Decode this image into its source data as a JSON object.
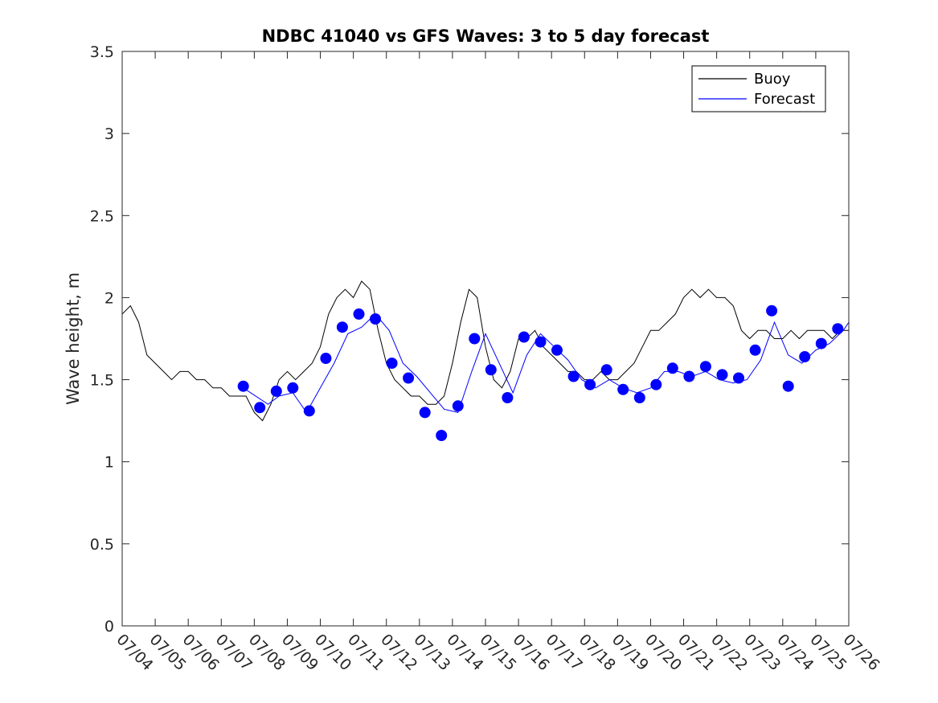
{
  "chart_data": {
    "type": "line",
    "title": "NDBC 41040 vs GFS Waves: 3 to 5 day forecast",
    "xlabel": "",
    "ylabel": "Wave height, m",
    "ylim": [
      0,
      3.5
    ],
    "yticks": [
      "0",
      "0.5",
      "1",
      "1.5",
      "2",
      "2.5",
      "3",
      "3.5"
    ],
    "xlim": [
      "07/04",
      "07/26"
    ],
    "xticks": [
      "07/04",
      "07/05",
      "07/06",
      "07/07",
      "07/08",
      "07/09",
      "07/10",
      "07/11",
      "07/12",
      "07/13",
      "07/14",
      "07/15",
      "07/16",
      "07/17",
      "07/18",
      "07/19",
      "07/20",
      "07/21",
      "07/22",
      "07/23",
      "07/24",
      "07/25",
      "07/26"
    ],
    "grid": false,
    "legend": {
      "position": "top-right",
      "entries": [
        "Buoy",
        "Forecast"
      ]
    },
    "colors": {
      "buoy": "#000000",
      "forecast": "#0000ff",
      "markers": "#0000ff"
    },
    "series": [
      {
        "name": "Buoy",
        "x": [
          "07/04 00:00",
          "07/04 06:00",
          "07/04 12:00",
          "07/04 18:00",
          "07/05 00:00",
          "07/05 06:00",
          "07/05 12:00",
          "07/05 18:00",
          "07/06 00:00",
          "07/06 06:00",
          "07/06 12:00",
          "07/06 18:00",
          "07/07 00:00",
          "07/07 06:00",
          "07/07 12:00",
          "07/07 18:00",
          "07/08 00:00",
          "07/08 06:00",
          "07/08 12:00",
          "07/08 18:00",
          "07/09 00:00",
          "07/09 06:00",
          "07/09 12:00",
          "07/09 18:00",
          "07/10 00:00",
          "07/10 06:00",
          "07/10 12:00",
          "07/10 18:00",
          "07/11 00:00",
          "07/11 06:00",
          "07/11 12:00",
          "07/11 18:00",
          "07/12 00:00",
          "07/12 06:00",
          "07/12 12:00",
          "07/12 18:00",
          "07/13 00:00",
          "07/13 06:00",
          "07/13 12:00",
          "07/13 18:00",
          "07/14 00:00",
          "07/14 06:00",
          "07/14 12:00",
          "07/14 18:00",
          "07/15 00:00",
          "07/15 06:00",
          "07/15 12:00",
          "07/15 18:00",
          "07/16 00:00",
          "07/16 06:00",
          "07/16 12:00",
          "07/16 18:00",
          "07/17 00:00",
          "07/17 06:00",
          "07/17 12:00",
          "07/17 18:00",
          "07/18 00:00",
          "07/18 06:00",
          "07/18 12:00",
          "07/18 18:00",
          "07/19 00:00",
          "07/19 06:00",
          "07/19 12:00",
          "07/19 18:00",
          "07/20 00:00",
          "07/20 06:00",
          "07/20 12:00",
          "07/20 18:00",
          "07/21 00:00",
          "07/21 06:00",
          "07/21 12:00",
          "07/21 18:00",
          "07/22 00:00",
          "07/22 06:00",
          "07/22 12:00",
          "07/22 18:00",
          "07/23 00:00",
          "07/23 06:00",
          "07/23 12:00",
          "07/23 18:00",
          "07/24 00:00",
          "07/24 06:00",
          "07/24 12:00",
          "07/24 18:00",
          "07/25 00:00",
          "07/25 06:00",
          "07/25 12:00",
          "07/25 18:00",
          "07/26 00:00"
        ],
        "y": [
          1.9,
          1.95,
          1.85,
          1.65,
          1.6,
          1.55,
          1.5,
          1.55,
          1.55,
          1.5,
          1.5,
          1.45,
          1.45,
          1.4,
          1.4,
          1.4,
          1.3,
          1.25,
          1.35,
          1.5,
          1.55,
          1.5,
          1.55,
          1.6,
          1.7,
          1.9,
          2.0,
          2.05,
          2.0,
          2.1,
          2.05,
          1.8,
          1.6,
          1.5,
          1.45,
          1.4,
          1.4,
          1.35,
          1.35,
          1.4,
          1.6,
          1.85,
          2.05,
          2.0,
          1.7,
          1.5,
          1.45,
          1.55,
          1.75,
          1.75,
          1.8,
          1.7,
          1.65,
          1.6,
          1.55,
          1.55,
          1.5,
          1.5,
          1.55,
          1.5,
          1.5,
          1.55,
          1.6,
          1.7,
          1.8,
          1.8,
          1.85,
          1.9,
          2.0,
          2.05,
          2.0,
          2.05,
          2.0,
          2.0,
          1.95,
          1.8,
          1.75,
          1.8,
          1.8,
          1.75,
          1.75,
          1.8,
          1.75,
          1.8,
          1.8,
          1.8,
          1.75,
          1.8,
          1.8
        ]
      },
      {
        "name": "Forecast",
        "x": [
          "07/07 16:00",
          "07/08 10:00",
          "07/08 18:00",
          "07/09 04:00",
          "07/09 14:00",
          "07/10 00:00",
          "07/10 10:00",
          "07/10 20:00",
          "07/11 06:00",
          "07/11 16:00",
          "07/12 02:00",
          "07/12 12:00",
          "07/12 22:00",
          "07/13 08:00",
          "07/13 18:00",
          "07/14 04:00",
          "07/14 14:00",
          "07/15 00:00",
          "07/15 10:00",
          "07/15 20:00",
          "07/16 06:00",
          "07/16 16:00",
          "07/17 02:00",
          "07/17 12:00",
          "07/17 22:00",
          "07/18 08:00",
          "07/18 18:00",
          "07/19 04:00",
          "07/19 14:00",
          "07/20 00:00",
          "07/20 10:00",
          "07/20 20:00",
          "07/21 06:00",
          "07/21 16:00",
          "07/22 02:00",
          "07/22 12:00",
          "07/22 22:00",
          "07/23 08:00",
          "07/23 18:00",
          "07/24 04:00",
          "07/24 14:00",
          "07/25 00:00",
          "07/25 10:00",
          "07/25 20:00",
          "07/26 00:00"
        ],
        "y": [
          1.45,
          1.35,
          1.4,
          1.42,
          1.3,
          1.45,
          1.6,
          1.78,
          1.82,
          1.9,
          1.8,
          1.6,
          1.52,
          1.42,
          1.32,
          1.3,
          1.55,
          1.78,
          1.6,
          1.42,
          1.65,
          1.78,
          1.7,
          1.62,
          1.5,
          1.45,
          1.5,
          1.45,
          1.42,
          1.45,
          1.55,
          1.55,
          1.52,
          1.55,
          1.5,
          1.48,
          1.5,
          1.62,
          1.85,
          1.65,
          1.6,
          1.68,
          1.72,
          1.8,
          1.85
        ]
      }
    ],
    "markers": {
      "name": "Forecast (analysis points)",
      "x": [
        "07/07 16:00",
        "07/08 04:00",
        "07/08 16:00",
        "07/09 04:00",
        "07/09 16:00",
        "07/10 04:00",
        "07/10 16:00",
        "07/11 04:00",
        "07/11 16:00",
        "07/12 04:00",
        "07/12 16:00",
        "07/13 04:00",
        "07/13 16:00",
        "07/14 04:00",
        "07/14 16:00",
        "07/15 04:00",
        "07/15 16:00",
        "07/16 04:00",
        "07/16 16:00",
        "07/17 04:00",
        "07/17 16:00",
        "07/18 04:00",
        "07/18 16:00",
        "07/19 04:00",
        "07/19 16:00",
        "07/20 04:00",
        "07/20 16:00",
        "07/21 04:00",
        "07/21 16:00",
        "07/22 04:00",
        "07/22 16:00",
        "07/23 04:00",
        "07/23 16:00",
        "07/24 04:00",
        "07/24 16:00",
        "07/25 04:00",
        "07/25 16:00"
      ],
      "y": [
        1.46,
        1.33,
        1.43,
        1.45,
        1.31,
        1.63,
        1.82,
        1.9,
        1.87,
        1.6,
        1.51,
        1.3,
        1.16,
        1.34,
        1.75,
        1.56,
        1.39,
        1.76,
        1.73,
        1.68,
        1.52,
        1.47,
        1.56,
        1.44,
        1.39,
        1.47,
        1.57,
        1.52,
        1.58,
        1.53,
        1.51,
        1.68,
        1.92,
        1.46,
        1.64,
        1.72,
        1.81
      ]
    }
  }
}
